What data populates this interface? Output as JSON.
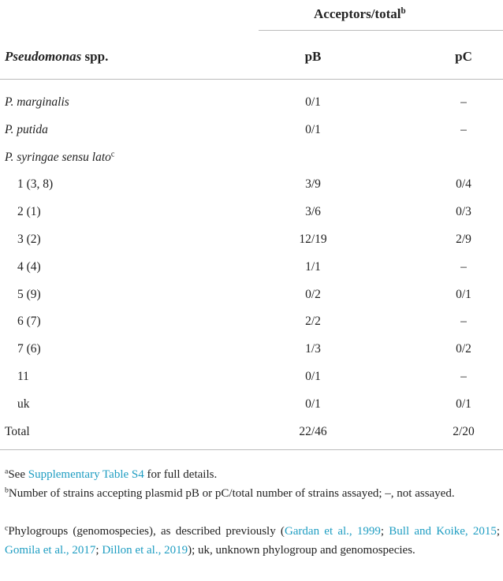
{
  "table": {
    "header": {
      "group": "Acceptors/total",
      "group_sup": "b",
      "col0_italic": "Pseudomonas",
      "col0_rest": " spp.",
      "cols": [
        "pB",
        "pC"
      ]
    },
    "rows": [
      [
        "P. marginalis",
        "0/1",
        "–"
      ],
      [
        "P. putida",
        "0/1",
        "–"
      ]
    ],
    "group": {
      "label": "P. syringae sensu lato",
      "sup": "c",
      "rows": [
        [
          "1 (3, 8)",
          "3/9",
          "0/4"
        ],
        [
          "2 (1)",
          "3/6",
          "0/3"
        ],
        [
          "3 (2)",
          "12/19",
          "2/9"
        ],
        [
          "4 (4)",
          "1/1",
          "–"
        ],
        [
          "5 (9)",
          "0/2",
          "0/1"
        ],
        [
          "6 (7)",
          "2/2",
          "–"
        ],
        [
          "7 (6)",
          "1/3",
          "0/2"
        ],
        [
          "11",
          "0/1",
          "–"
        ],
        [
          "uk",
          "0/1",
          "0/1"
        ]
      ]
    },
    "total": [
      "Total",
      "22/46",
      "2/20"
    ]
  },
  "footnotes": [
    {
      "mark": "a",
      "parts": [
        {
          "text": "See "
        },
        {
          "link": "Supplementary Table S4"
        },
        {
          "text": " for full details."
        }
      ]
    },
    {
      "mark": "b",
      "parts": [
        {
          "text": "Number of strains accepting plasmid pB or pC/total number of strains assayed; –, not assayed."
        }
      ]
    },
    {
      "mark": "c",
      "parts": [
        {
          "text": "Phylogroups (genomospecies), as described previously ("
        },
        {
          "link": "Gardan et al., 1999"
        },
        {
          "text": "; "
        },
        {
          "link": "Bull and Koike, 2015"
        },
        {
          "text": "; "
        },
        {
          "link": "Gomila et al., 2017"
        },
        {
          "text": "; "
        },
        {
          "link": "Dillon et al., 2019"
        },
        {
          "text": "); uk, unknown phylogroup and genomospecies."
        }
      ]
    }
  ]
}
